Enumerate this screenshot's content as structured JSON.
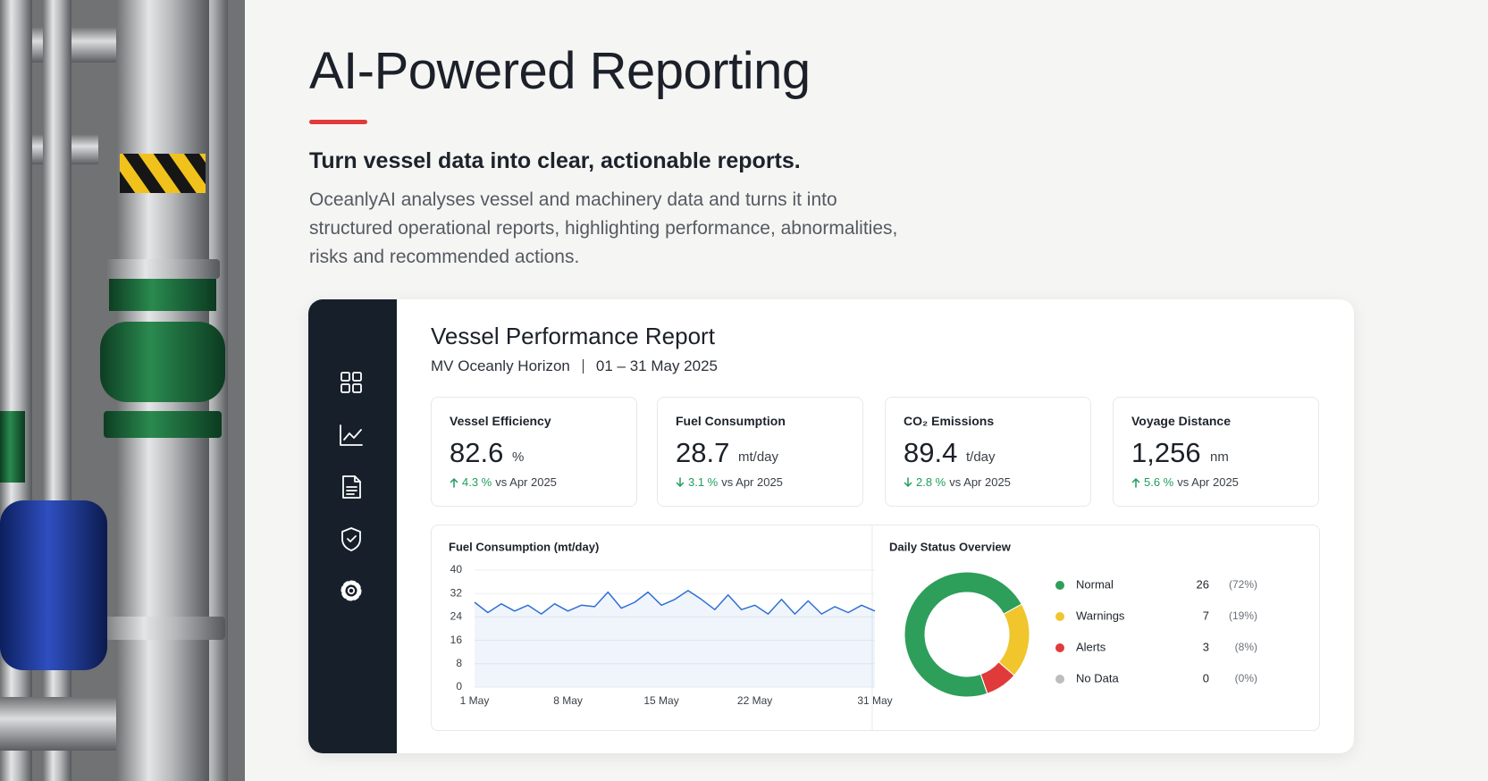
{
  "header": {
    "title": "AI-Powered Reporting",
    "tagline": "Turn vessel data into clear, actionable reports.",
    "description": "OceanlyAI analyses vessel and machinery data and turns it into structured operational reports, highlighting performance, abnormalities, risks and recommended actions."
  },
  "report": {
    "title": "Vessel Performance Report",
    "vessel": "MV Oceanly Horizon",
    "period": "01 – 31 May 2025",
    "kpis": [
      {
        "label": "Vessel Efficiency",
        "value": "82.6",
        "unit": "%",
        "trend": "up",
        "change": "4.3 %",
        "comparison": "vs Apr 2025"
      },
      {
        "label": "Fuel Consumption",
        "value": "28.7",
        "unit": "mt/day",
        "trend": "down",
        "change": "3.1 %",
        "comparison": "vs Apr 2025"
      },
      {
        "label": "CO₂ Emissions",
        "value": "89.4",
        "unit": "t/day",
        "trend": "down",
        "change": "2.8 %",
        "comparison": "vs Apr 2025"
      },
      {
        "label": "Voyage Distance",
        "value": "1,256",
        "unit": "nm",
        "trend": "up",
        "change": "5.6 %",
        "comparison": "vs Apr 2025"
      }
    ]
  },
  "chart_data": [
    {
      "type": "line",
      "title": "Fuel Consumption (mt/day)",
      "categories": [
        "1 May",
        null,
        null,
        null,
        null,
        null,
        null,
        "8 May",
        null,
        null,
        null,
        null,
        null,
        null,
        "15 May",
        null,
        null,
        null,
        null,
        null,
        null,
        "22 May",
        null,
        null,
        null,
        null,
        null,
        null,
        null,
        null,
        "31 May"
      ],
      "values": [
        29,
        25.5,
        28.5,
        26,
        28,
        25,
        28.5,
        26,
        28,
        27.5,
        32.5,
        27,
        29,
        32.5,
        28,
        30,
        33,
        30,
        26.5,
        31.5,
        26.5,
        28,
        25,
        30,
        25,
        29.5,
        25,
        27.5,
        25.5,
        28,
        26
      ],
      "color": "#2f6fd6",
      "area": true,
      "ylim": [
        0,
        40
      ],
      "yticks": [
        0,
        8,
        16,
        24,
        32,
        40
      ],
      "grid": true
    },
    {
      "type": "pie",
      "donut": true,
      "title": "Daily Status Overview",
      "categories": [
        "Normal",
        "Warnings",
        "Alerts",
        "No Data"
      ],
      "values": [
        26,
        7,
        3,
        0
      ],
      "shares": [
        "(72%)",
        "(19%)",
        "(8%)",
        "(0%)"
      ],
      "colors": [
        "#2e9e5b",
        "#f0c62c",
        "#e03a3a",
        "#bdbdbd"
      ]
    }
  ]
}
